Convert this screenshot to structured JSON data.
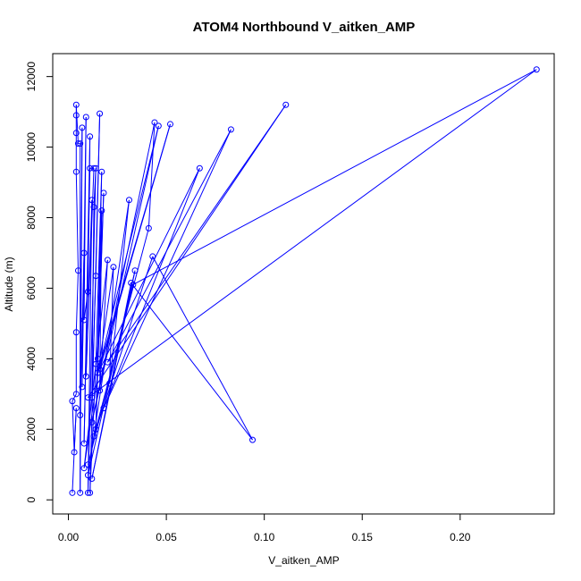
{
  "chart_data": {
    "type": "scatter",
    "title": "ATOM4 Northbound V_aitken_AMP",
    "xlabel": "V_aitken_AMP",
    "ylabel": "Altitude (m)",
    "xlim": [
      -0.008,
      0.248
    ],
    "ylim": [
      -400,
      12650
    ],
    "xticks": [
      0.0,
      0.05,
      0.1,
      0.15,
      0.2
    ],
    "xtick_labels": [
      "0.00",
      "0.05",
      "0.10",
      "0.15",
      "0.20"
    ],
    "yticks": [
      0,
      2000,
      4000,
      6000,
      8000,
      10000,
      12000
    ],
    "ytick_labels": [
      "0",
      "2000",
      "4000",
      "6000",
      "8000",
      "10000",
      "12000"
    ],
    "grid": false,
    "marker": "open-circle",
    "connected": true,
    "color": "#0000ff",
    "series": [
      {
        "points": [
          [
            0.002,
            200
          ],
          [
            0.004,
            2600
          ],
          [
            0.003,
            1350
          ],
          [
            0.002,
            2800
          ],
          [
            0.004,
            3000
          ],
          [
            0.004,
            4750
          ],
          [
            0.005,
            6500
          ],
          [
            0.004,
            9300
          ],
          [
            0.004,
            10400
          ],
          [
            0.004,
            10900
          ],
          [
            0.004,
            11200
          ],
          [
            0.005,
            10100
          ],
          [
            0.006,
            10100
          ],
          [
            0.006,
            200
          ],
          [
            0.007,
            10550
          ],
          [
            0.006,
            2400
          ],
          [
            0.008,
            7000
          ],
          [
            0.007,
            3200
          ],
          [
            0.009,
            10850
          ],
          [
            0.008,
            5100
          ],
          [
            0.01,
            5900
          ],
          [
            0.011,
            10300
          ],
          [
            0.008,
            1600
          ],
          [
            0.011,
            9400
          ],
          [
            0.013,
            9400
          ],
          [
            0.009,
            3500
          ],
          [
            0.012,
            8500
          ],
          [
            0.01,
            200
          ],
          [
            0.014,
            9400
          ],
          [
            0.013,
            8300
          ],
          [
            0.012,
            2900
          ],
          [
            0.014,
            6350
          ],
          [
            0.016,
            10950
          ],
          [
            0.011,
            200
          ],
          [
            0.014,
            3850
          ],
          [
            0.017,
            9300
          ],
          [
            0.014,
            2000
          ],
          [
            0.018,
            8700
          ],
          [
            0.015,
            4000
          ],
          [
            0.017,
            8200
          ],
          [
            0.016,
            3100
          ],
          [
            0.02,
            6800
          ],
          [
            0.008,
            900
          ],
          [
            0.023,
            6600
          ],
          [
            0.021,
            3300
          ],
          [
            0.031,
            8500
          ],
          [
            0.01,
            700
          ],
          [
            0.034,
            6500
          ],
          [
            0.012,
            600
          ],
          [
            0.032,
            6150
          ],
          [
            0.094,
            1700
          ],
          [
            0.043,
            6900
          ],
          [
            0.013,
            1800
          ],
          [
            0.041,
            7700
          ],
          [
            0.044,
            10700
          ],
          [
            0.012,
            2200
          ],
          [
            0.046,
            10600
          ],
          [
            0.015,
            3600
          ],
          [
            0.052,
            10650
          ],
          [
            0.016,
            3700
          ],
          [
            0.067,
            9400
          ],
          [
            0.018,
            2600
          ],
          [
            0.083,
            10500
          ],
          [
            0.02,
            3900
          ],
          [
            0.111,
            11200
          ],
          [
            0.01,
            2900
          ],
          [
            0.239,
            12200
          ],
          [
            0.033,
            6100
          ],
          [
            0.01,
            1000
          ]
        ]
      }
    ]
  }
}
